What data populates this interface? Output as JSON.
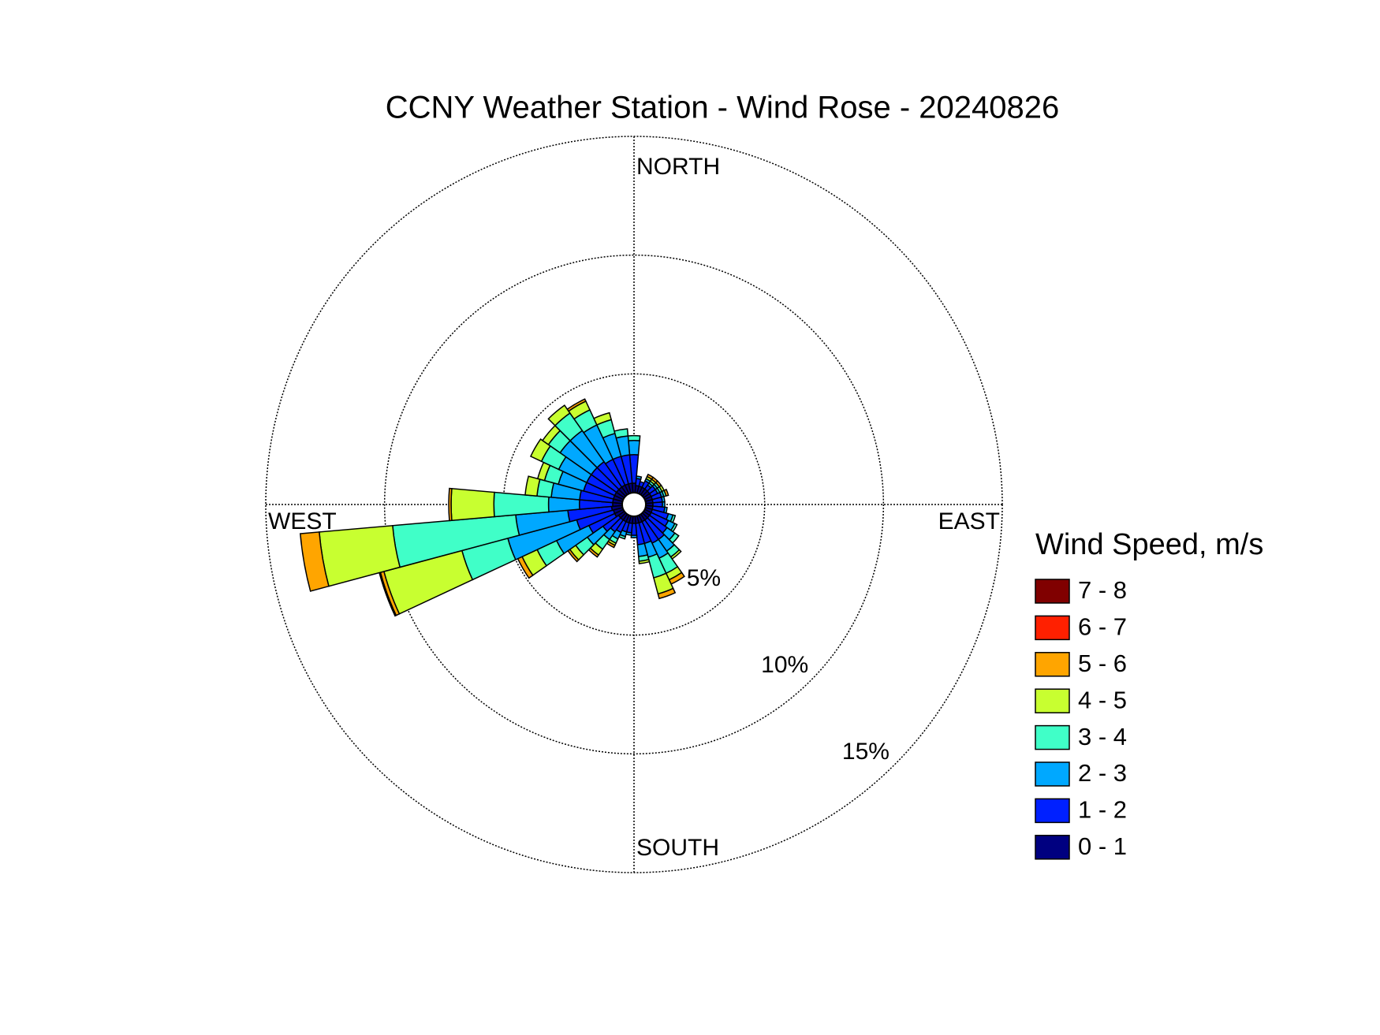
{
  "chart_data": {
    "type": "windrose",
    "title": "CCNY Weather Station - Wind Rose - 20240826",
    "directions": [
      0,
      10,
      20,
      30,
      40,
      50,
      60,
      70,
      80,
      90,
      100,
      110,
      120,
      130,
      140,
      150,
      160,
      170,
      180,
      190,
      200,
      210,
      220,
      230,
      240,
      250,
      260,
      270,
      280,
      290,
      300,
      310,
      320,
      330,
      340,
      350
    ],
    "compass_labels": [
      "NORTH",
      "EAST",
      "SOUTH",
      "WEST"
    ],
    "rlim": [
      0,
      15
    ],
    "rticks": [
      {
        "value": 5,
        "label": "5%"
      },
      {
        "value": 10,
        "label": "10%"
      },
      {
        "value": 15,
        "label": "15%"
      }
    ],
    "grid": true,
    "legend_title": "Wind Speed, m/s",
    "legend_position": "right",
    "series": [
      {
        "name": "0 - 1",
        "color": "#000080",
        "values": [
          0.4,
          0.3,
          0.3,
          0.3,
          0.3,
          0.3,
          0.3,
          0.3,
          0.3,
          0.3,
          0.3,
          0.3,
          0.3,
          0.3,
          0.3,
          0.3,
          0.3,
          0.3,
          0.3,
          0.3,
          0.3,
          0.3,
          0.3,
          0.3,
          0.4,
          0.4,
          0.45,
          0.4,
          0.4,
          0.4,
          0.4,
          0.4,
          0.4,
          0.4,
          0.4,
          0.4
        ]
      },
      {
        "name": "1 - 2",
        "color": "#0020ff",
        "values": [
          1.2,
          0.3,
          0.2,
          0.3,
          0.2,
          0.3,
          0.3,
          0.4,
          0.4,
          0.4,
          0.5,
          0.7,
          0.8,
          0.9,
          1.0,
          1.0,
          0.9,
          0.9,
          0.5,
          0.4,
          0.4,
          0.5,
          0.6,
          0.8,
          1.2,
          1.6,
          1.85,
          1.4,
          1.4,
          1.3,
          1.3,
          1.3,
          1.3,
          1.2,
          1.2,
          1.2
        ]
      },
      {
        "name": "2 - 3",
        "color": "#00a8ff",
        "values": [
          0.6,
          0.1,
          0,
          0.1,
          0.1,
          0.1,
          0.1,
          0.1,
          0.1,
          0.1,
          0.1,
          0.2,
          0.3,
          0.4,
          0.6,
          0.7,
          0.6,
          0.5,
          0.1,
          0.1,
          0.2,
          0.3,
          0.4,
          0.8,
          1.5,
          3.0,
          2.2,
          1.3,
          1.2,
          1.1,
          1.3,
          1.6,
          1.6,
          1.6,
          1.0,
          0.8
        ]
      },
      {
        "name": "3 - 4",
        "color": "#40ffc8",
        "values": [
          0.2,
          0,
          0,
          0,
          0.1,
          0.1,
          0.1,
          0.1,
          0,
          0,
          0,
          0.1,
          0.1,
          0.2,
          0.3,
          0.7,
          0.9,
          0.2,
          0,
          0,
          0.1,
          0.2,
          0.5,
          0.6,
          0.9,
          2.0,
          5.2,
          2.3,
          0.6,
          0.6,
          0.8,
          0.6,
          0.9,
          0.7,
          0.6,
          0.3
        ]
      },
      {
        "name": "4 - 5",
        "color": "#c8ff30",
        "values": [
          0,
          0,
          0,
          0.1,
          0.1,
          0,
          0.1,
          0,
          0,
          0,
          0,
          0,
          0,
          0,
          0.1,
          0.3,
          0.7,
          0.1,
          0,
          0,
          0,
          0.1,
          0.3,
          0.3,
          0.7,
          3.4,
          3.1,
          1.8,
          0.5,
          0.3,
          0.5,
          0.3,
          0.4,
          0.4,
          0.3,
          0
        ]
      },
      {
        "name": "5 - 6",
        "color": "#ffa500",
        "values": [
          0,
          0,
          0,
          0.1,
          0.1,
          0.1,
          0,
          0.1,
          0,
          0,
          0,
          0,
          0,
          0,
          0,
          0.2,
          0.2,
          0,
          0,
          0,
          0,
          0.1,
          0.1,
          0.1,
          0.2,
          0.15,
          0.8,
          0.1,
          0,
          0,
          0,
          0,
          0,
          0.1,
          0,
          0
        ]
      },
      {
        "name": "6 - 7",
        "color": "#ff2000",
        "values": [
          0,
          0,
          0,
          0,
          0,
          0,
          0,
          0,
          0,
          0,
          0,
          0,
          0,
          0,
          0,
          0,
          0,
          0,
          0,
          0,
          0,
          0,
          0,
          0,
          0,
          0.05,
          0,
          0,
          0,
          0,
          0,
          0,
          0,
          0,
          0,
          0
        ]
      },
      {
        "name": "7 - 8",
        "color": "#800000",
        "values": [
          0,
          0,
          0,
          0,
          0,
          0,
          0,
          0,
          0,
          0,
          0,
          0,
          0,
          0,
          0,
          0,
          0,
          0,
          0,
          0,
          0,
          0,
          0,
          0,
          0,
          0,
          0,
          0,
          0,
          0,
          0,
          0,
          0,
          0,
          0,
          0
        ]
      }
    ]
  }
}
